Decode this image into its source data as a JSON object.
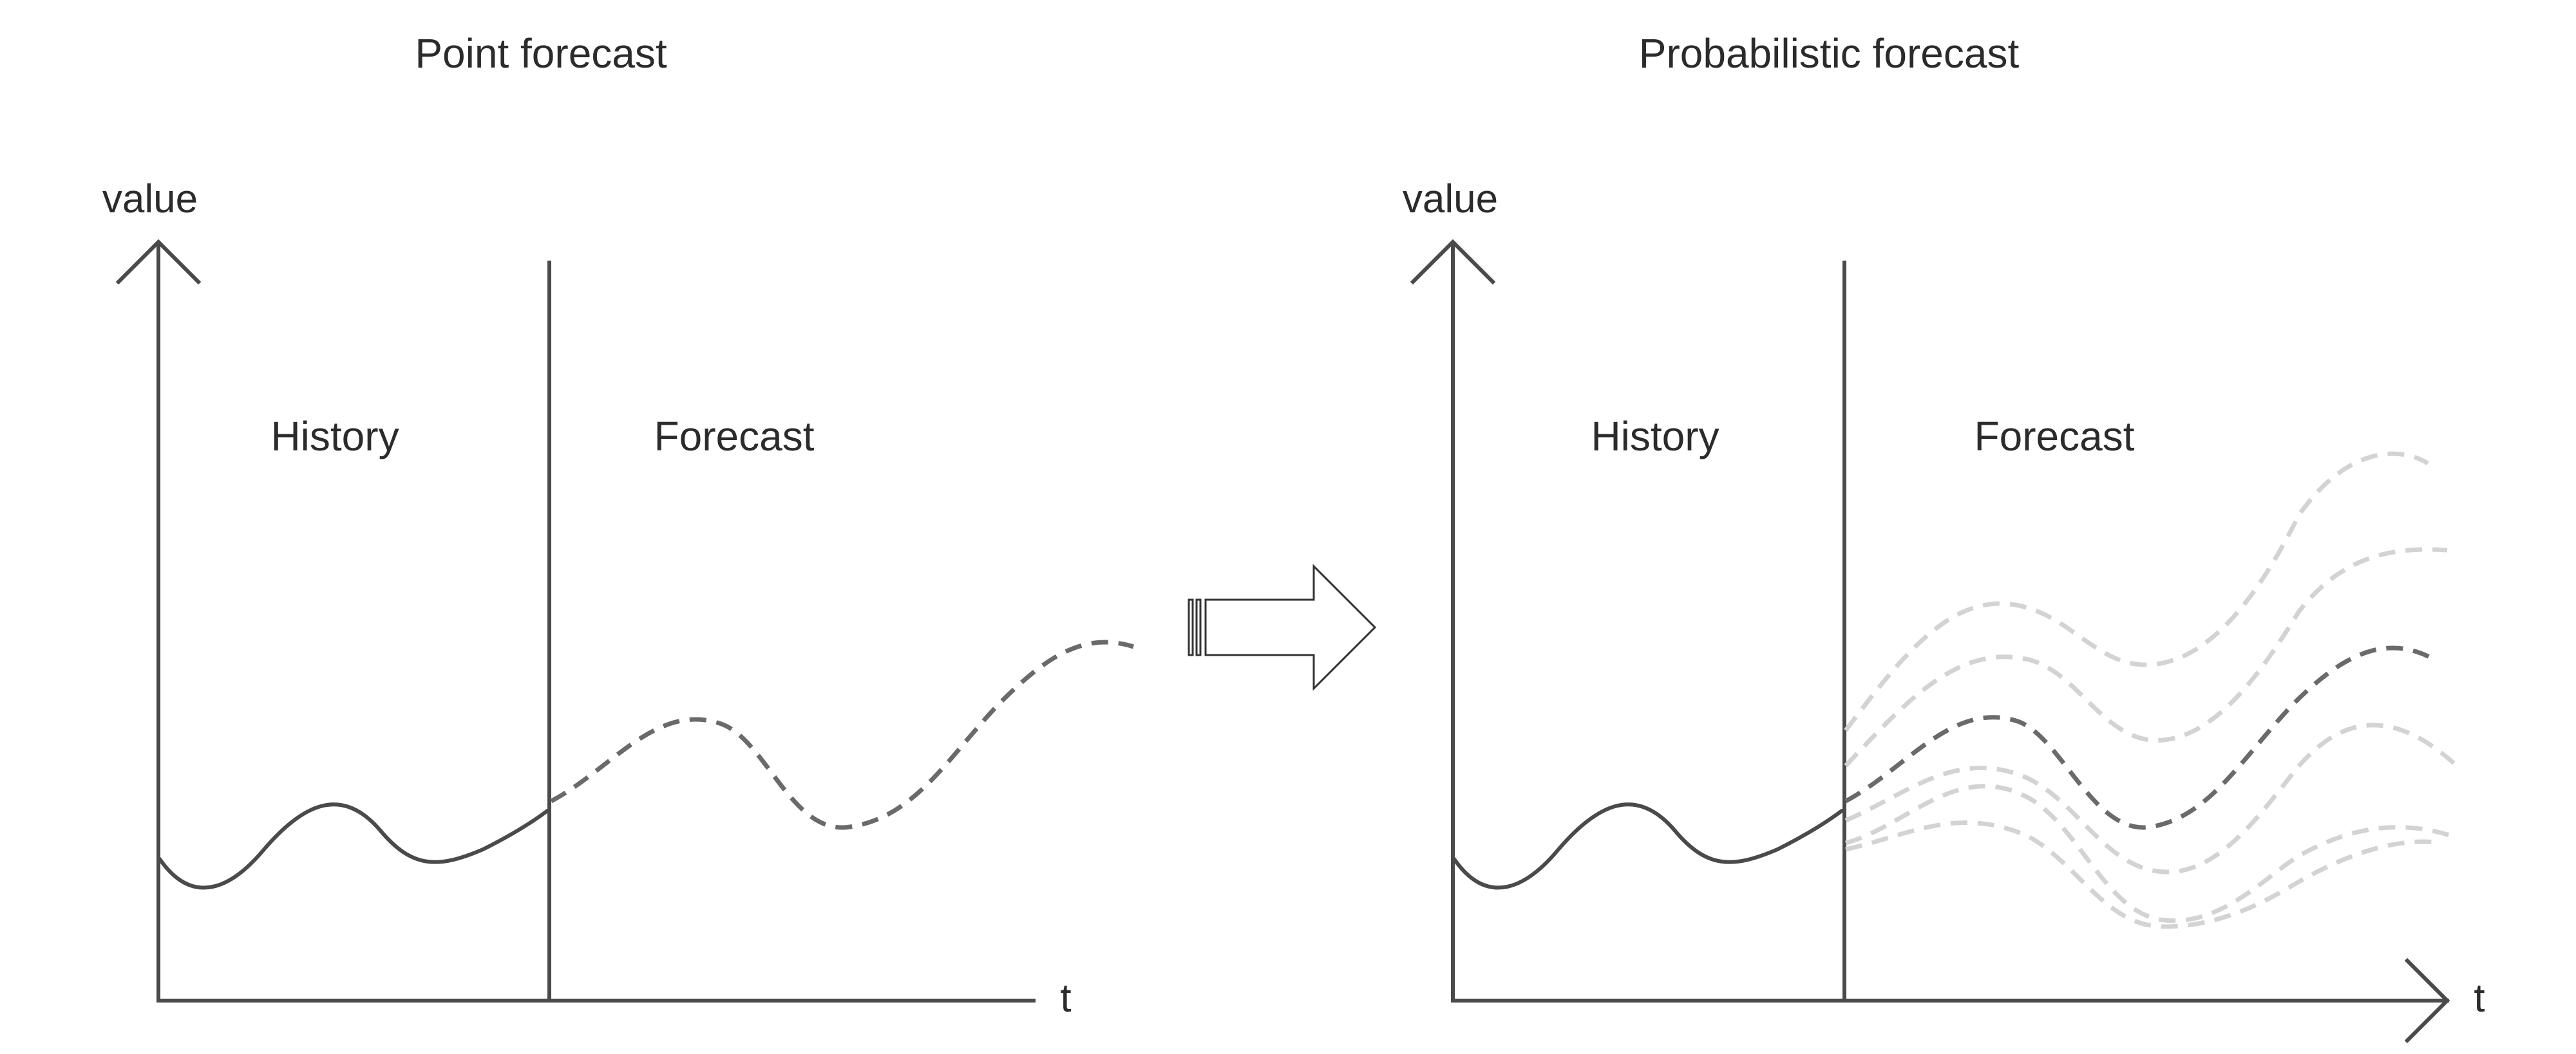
{
  "left_panel": {
    "title": "Point forecast",
    "y_axis_label": "value",
    "x_axis_label": "t",
    "history_label": "History",
    "forecast_label": "Forecast"
  },
  "right_panel": {
    "title": "Probabilistic forecast",
    "y_axis_label": "value",
    "x_axis_label": "t",
    "history_label": "History",
    "forecast_label": "Forecast"
  },
  "colors": {
    "axis": "#4a4a4a",
    "history_line": "#4a4a4a",
    "forecast_main": "#6a6a6a",
    "forecast_samples": "#d3d3d3"
  },
  "icons": {
    "transition": "right-arrow-icon"
  }
}
